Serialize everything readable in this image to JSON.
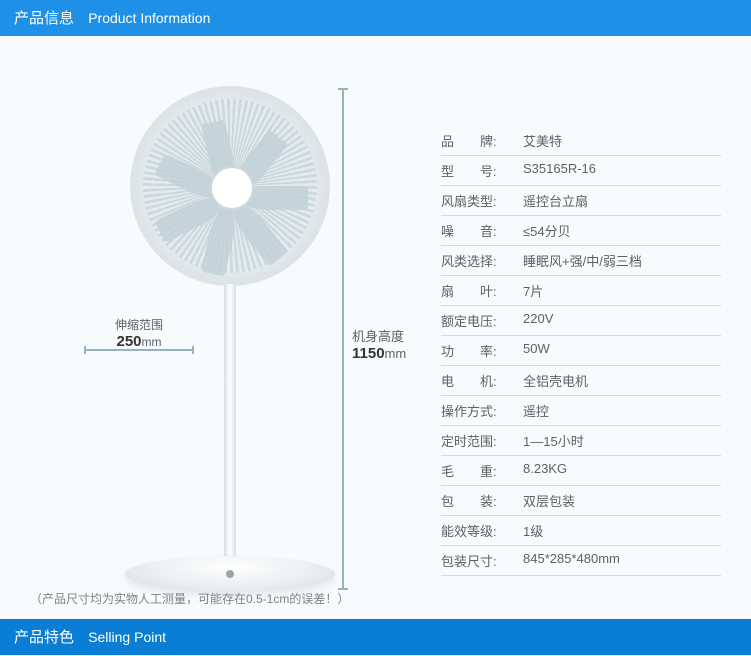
{
  "colors": {
    "header": "#1e90e8",
    "section2": "#0a7dd4",
    "content_bg": "#f7fbfd",
    "text": "#5a6268"
  },
  "header1": {
    "zh": "产品信息",
    "en": "Product Information"
  },
  "header2": {
    "zh": "产品特色",
    "en": "Selling Point"
  },
  "dimensions": {
    "telescope": {
      "label": "伸缩范围",
      "value": "250",
      "unit": "mm"
    },
    "height": {
      "label": "机身高度",
      "value": "1150",
      "unit": "mm"
    }
  },
  "note": "（产品尺寸均为实物人工测量，可能存在0.5-1cm的误差！）",
  "specs": [
    {
      "k": "品　　牌:",
      "v": "艾美特"
    },
    {
      "k": "型　　号:",
      "v": "S35165R-16"
    },
    {
      "k": "风扇类型:",
      "v": "遥控台立扇"
    },
    {
      "k": "噪　　音:",
      "v": "≤54分贝"
    },
    {
      "k": "风类选择:",
      "v": "睡眠风+强/中/弱三档"
    },
    {
      "k": "扇　　叶:",
      "v": "7片"
    },
    {
      "k": "额定电压:",
      "v": "220V"
    },
    {
      "k": "功　　率:",
      "v": "50W"
    },
    {
      "k": "电　　机:",
      "v": "全铝壳电机"
    },
    {
      "k": "操作方式:",
      "v": "遥控"
    },
    {
      "k": "定时范围:",
      "v": "1—15小时"
    },
    {
      "k": "毛　　重:",
      "v": "8.23KG"
    },
    {
      "k": "包　　装:",
      "v": "双层包装"
    },
    {
      "k": "能效等级:",
      "v": "1级"
    },
    {
      "k": "包装尺寸:",
      "v": "845*285*480mm"
    }
  ],
  "fan": {
    "blade_count": 7,
    "blade_color": "#c2d1d8"
  }
}
